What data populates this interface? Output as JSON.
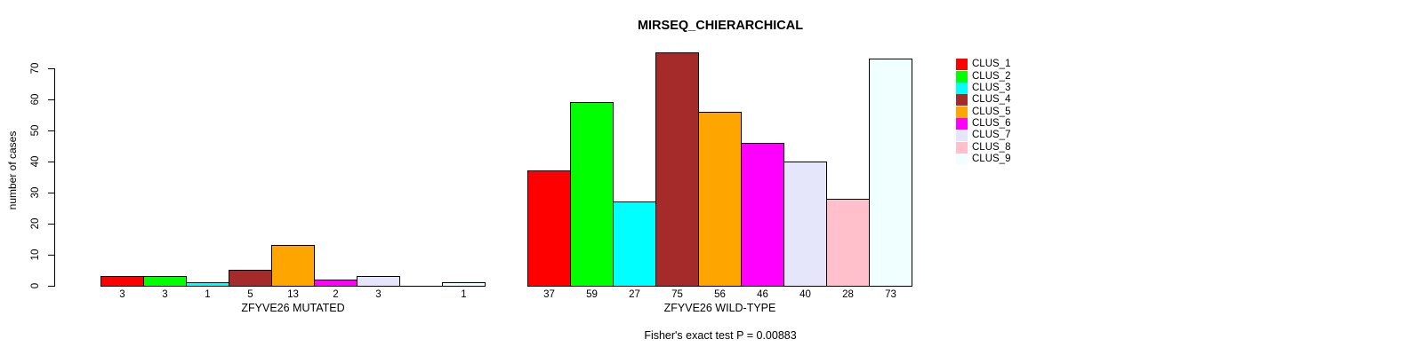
{
  "chart_data": {
    "type": "bar",
    "title": "MIRSEQ_CHIERARCHICAL",
    "ylabel": "number of cases",
    "ylim": [
      0,
      70
    ],
    "yticks": [
      0,
      10,
      20,
      30,
      40,
      50,
      60,
      70
    ],
    "grid": false,
    "legend_position": "right",
    "series": [
      {
        "name": "CLUS_1",
        "color": "#FF0000"
      },
      {
        "name": "CLUS_2",
        "color": "#00FF00"
      },
      {
        "name": "CLUS_3",
        "color": "#00FFFF"
      },
      {
        "name": "CLUS_4",
        "color": "#A52A2A"
      },
      {
        "name": "CLUS_5",
        "color": "#FFA500"
      },
      {
        "name": "CLUS_6",
        "color": "#FF00FF"
      },
      {
        "name": "CLUS_7",
        "color": "#E6E6FA"
      },
      {
        "name": "CLUS_8",
        "color": "#FFC0CB"
      },
      {
        "name": "CLUS_9",
        "color": "#F0FFFF"
      }
    ],
    "groups": [
      {
        "label": "ZFYVE26 MUTATED",
        "values": [
          3,
          3,
          1,
          5,
          13,
          2,
          3,
          0,
          1
        ]
      },
      {
        "label": "ZFYVE26 WILD-TYPE",
        "values": [
          37,
          59,
          27,
          75,
          56,
          46,
          40,
          28,
          73
        ]
      }
    ],
    "bar_border_color": "#000000",
    "annotation": "Fisher's exact test P = 0.00883"
  }
}
